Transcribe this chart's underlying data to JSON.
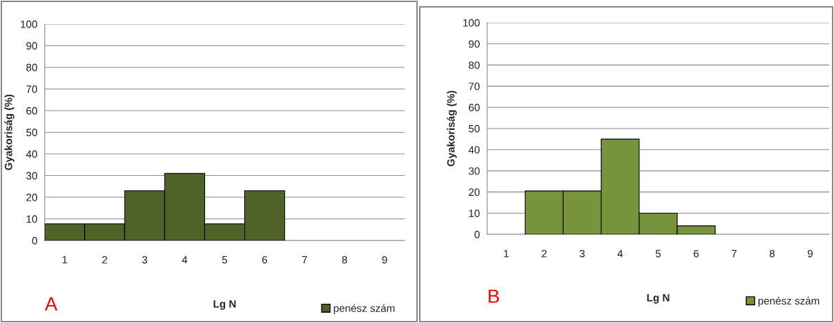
{
  "chart_data": [
    {
      "type": "bar",
      "xlabel": "Lg N",
      "ylabel": "Gyakoriság (%)",
      "categories": [
        "1",
        "2",
        "3",
        "4",
        "5",
        "6",
        "7",
        "8",
        "9"
      ],
      "series": [
        {
          "name": "penész szám",
          "color": "#4f6228",
          "values": [
            7.7,
            7.7,
            23,
            31,
            7.7,
            23,
            0,
            0,
            0
          ]
        }
      ],
      "ylim": [
        0,
        100
      ],
      "yticks": [
        0,
        10,
        20,
        30,
        40,
        50,
        60,
        70,
        80,
        90,
        100
      ],
      "grid": "y",
      "legend": "bottom right",
      "annotations": [
        "A"
      ]
    },
    {
      "type": "bar",
      "xlabel": "Lg N",
      "ylabel": "Gyakoriság (%)",
      "categories": [
        "1",
        "2",
        "3",
        "4",
        "5",
        "6",
        "7",
        "8",
        "9"
      ],
      "series": [
        {
          "name": "penész szám",
          "color": "#77933c",
          "values": [
            0,
            20.5,
            20.5,
            45,
            10,
            4,
            0,
            0,
            0
          ]
        }
      ],
      "ylim": [
        0,
        100
      ],
      "yticks": [
        0,
        10,
        20,
        30,
        40,
        50,
        60,
        70,
        80,
        90,
        100
      ],
      "grid": "y",
      "legend": "bottom right",
      "annotations": [
        "B"
      ]
    }
  ]
}
